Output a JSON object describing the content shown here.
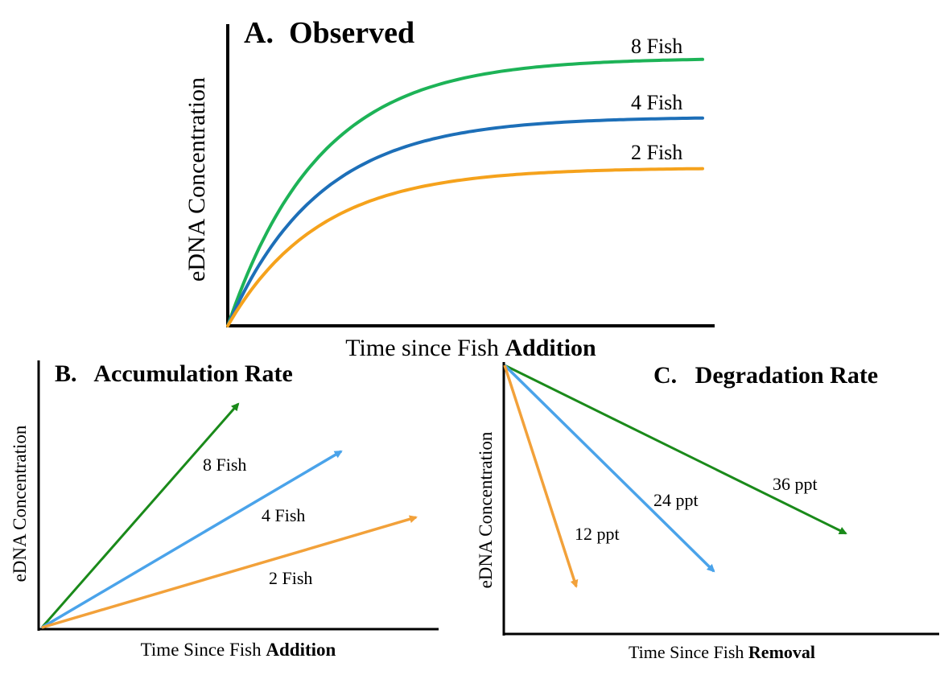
{
  "colors": {
    "green": "#1db357",
    "blue": "#1d6fb8",
    "orange": "#f5a21c",
    "arrow_green": "#1a8a1a",
    "arrow_blue": "#4aa3ea",
    "arrow_orange": "#f2a13a",
    "axis": "#000000"
  },
  "panel_a": {
    "title": "A.  Observed",
    "ylabel": "eDNA Concentration",
    "xlabel_prefix": "Time since Fish ",
    "xlabel_bold": "Addition",
    "curves": [
      {
        "label": "8 Fish",
        "color": "green",
        "plateau": 1.0
      },
      {
        "label": "4 Fish",
        "color": "blue",
        "plateau": 0.78
      },
      {
        "label": "2 Fish",
        "color": "orange",
        "plateau": 0.59
      }
    ]
  },
  "panel_b": {
    "title": "B.   Accumulation Rate",
    "ylabel": "eDNA Concentration",
    "xlabel_prefix": "Time Since Fish ",
    "xlabel_bold": "Addition",
    "arrows": [
      {
        "label": "8 Fish",
        "color": "arrow_green"
      },
      {
        "label": "4 Fish",
        "color": "arrow_blue"
      },
      {
        "label": "2 Fish",
        "color": "arrow_orange"
      }
    ]
  },
  "panel_c": {
    "title": "C.   Degradation Rate",
    "ylabel": "eDNA Concentration",
    "xlabel_prefix": "Time Since Fish ",
    "xlabel_bold": "Removal",
    "arrows": [
      {
        "label": "36 ppt",
        "color": "arrow_green"
      },
      {
        "label": "24 ppt",
        "color": "arrow_blue"
      },
      {
        "label": "12 ppt",
        "color": "arrow_orange"
      }
    ]
  }
}
